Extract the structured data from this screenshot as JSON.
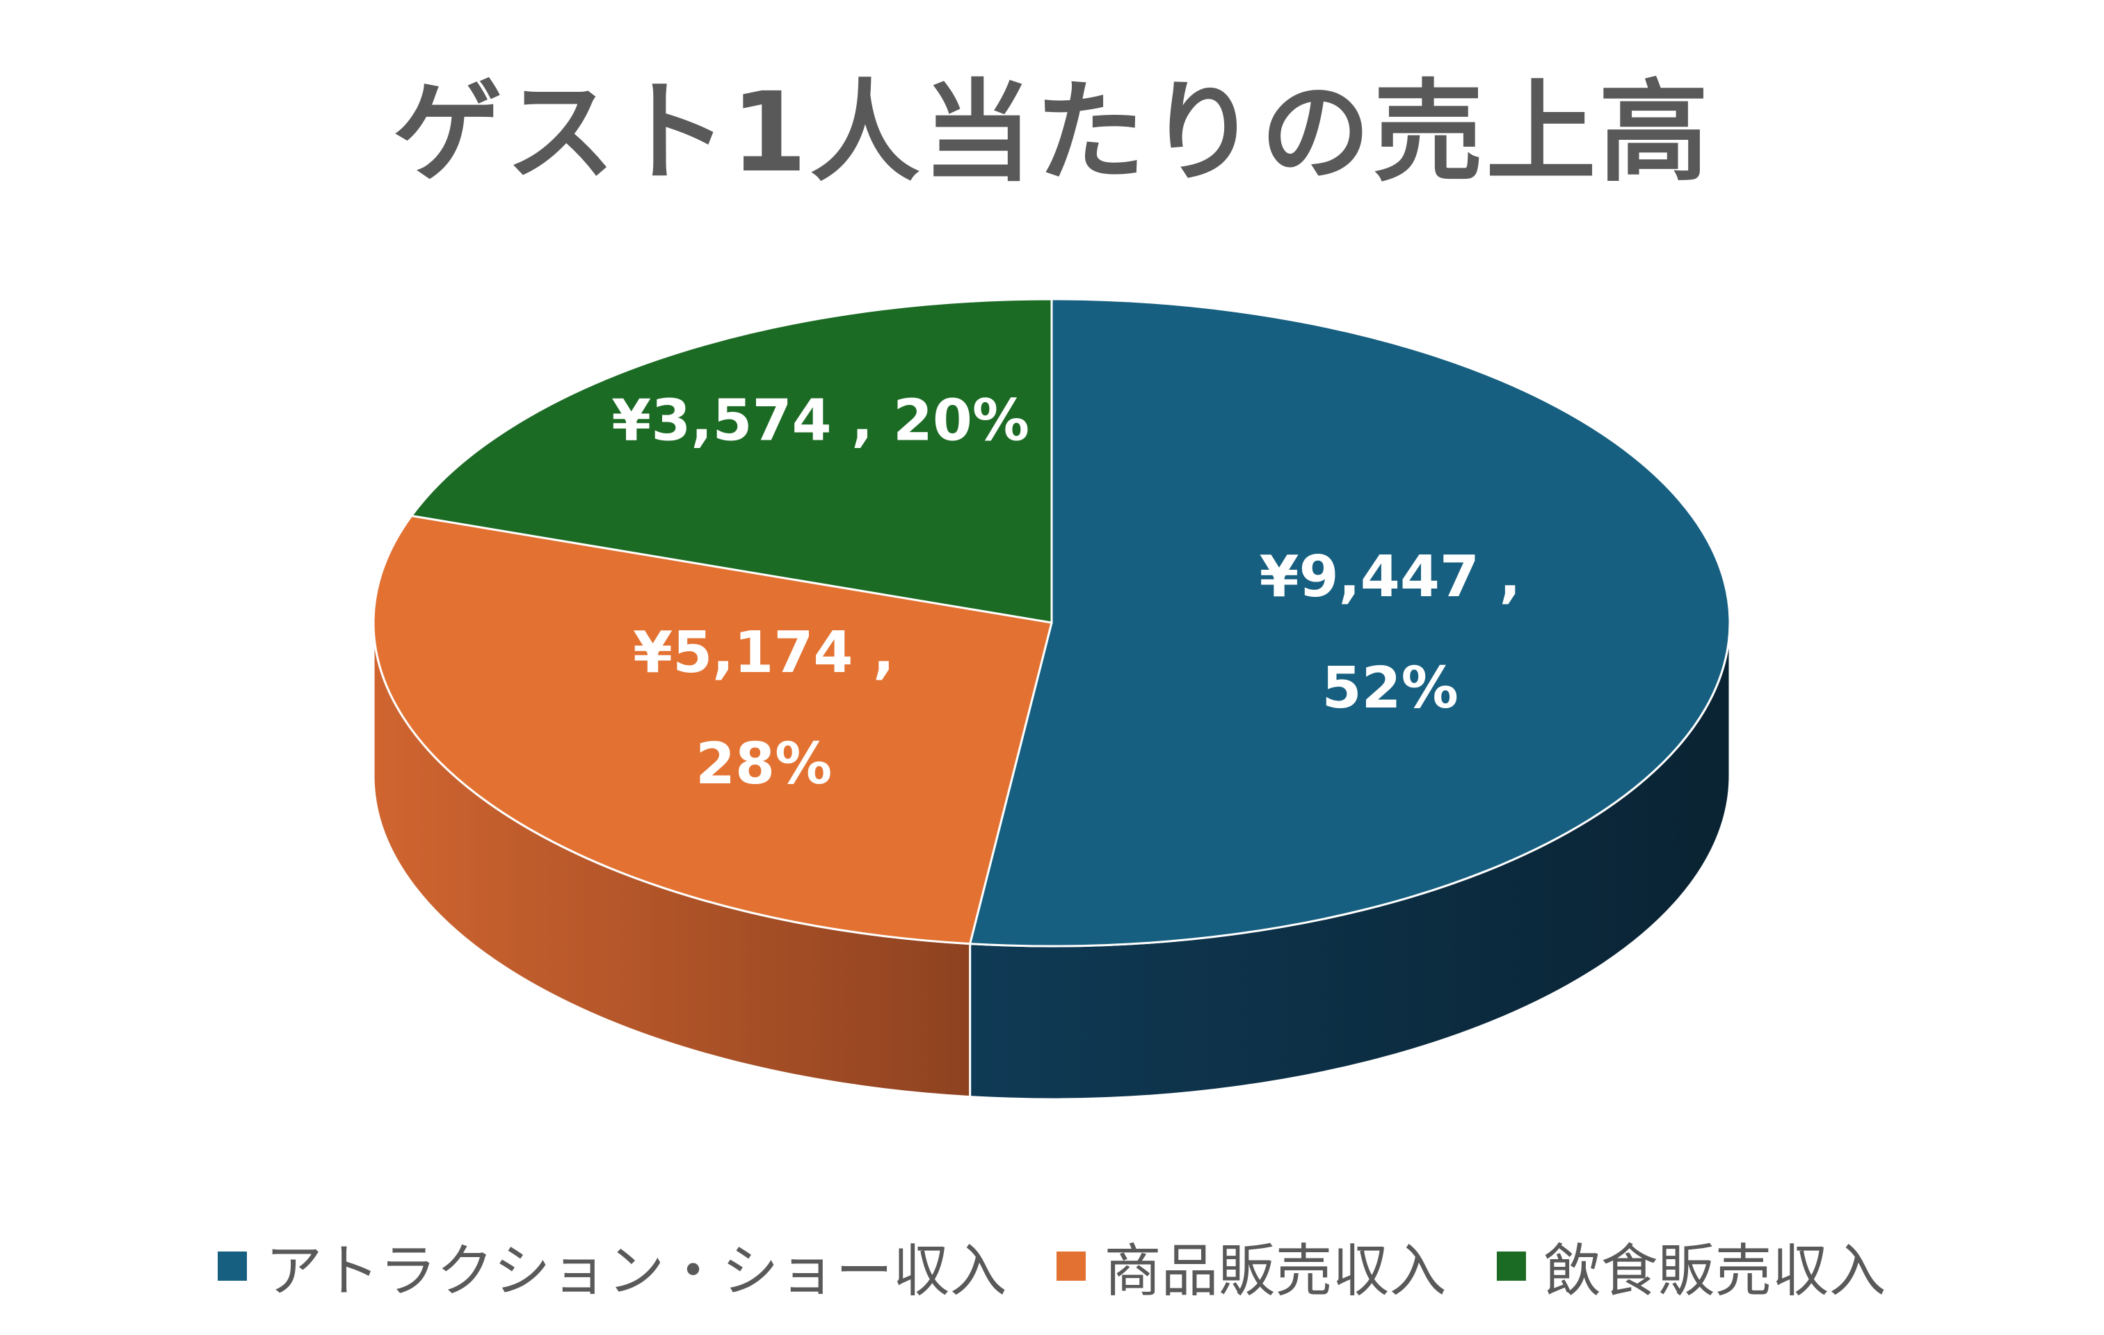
{
  "chart_data": {
    "type": "pie",
    "title": "ゲスト1人当たりの売上高",
    "legend_position": "bottom",
    "style": "3d",
    "series": [
      {
        "name": "アトラクション・ショー収入",
        "value": 9447,
        "percent": 52,
        "value_label": "¥9,447 ,",
        "percent_label": "52%",
        "color": "#175F80",
        "side_color": "#0D3147"
      },
      {
        "name": "商品販売収入",
        "value": 5174,
        "percent": 28,
        "value_label": "¥5,174 ,",
        "percent_label": "28%",
        "color": "#E37232",
        "side_color": "#A9512A"
      },
      {
        "name": "飲食販売収入",
        "value": 3574,
        "percent": 20,
        "value_label": "¥3,574 , 20%",
        "percent_label": "",
        "color": "#1C6B25",
        "side_color": "#124818"
      }
    ]
  }
}
